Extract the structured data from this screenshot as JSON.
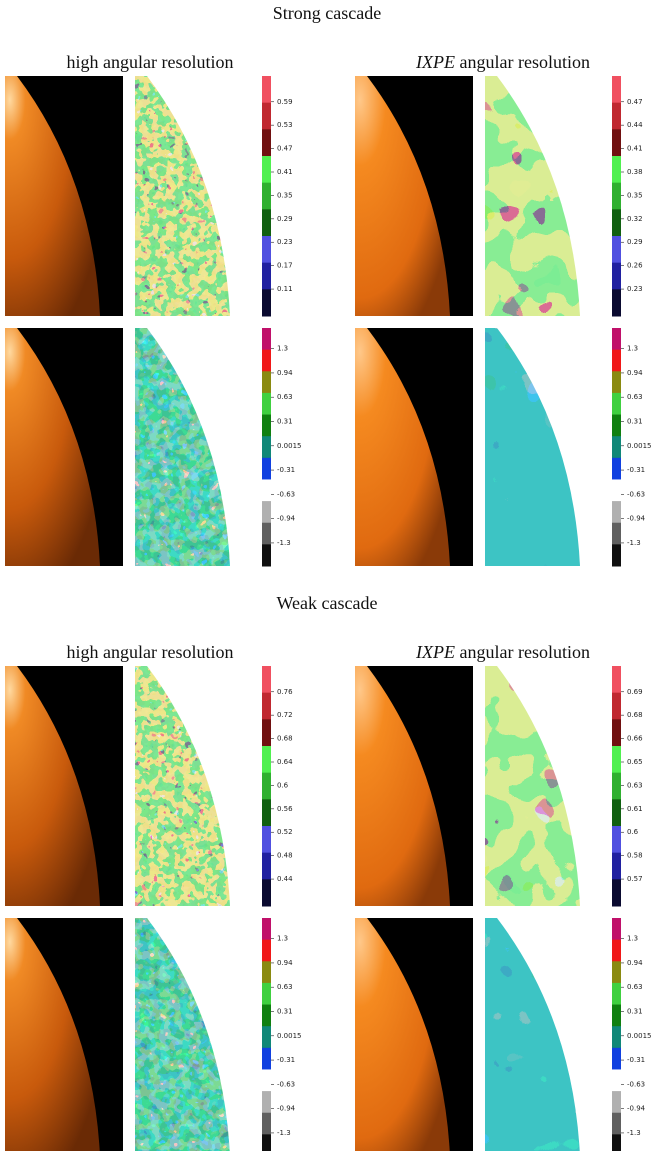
{
  "sections": [
    {
      "title": "Strong cascade",
      "left_header": "high angular resolution",
      "right_header_italic": "IXPE",
      "right_header": "angular resolution",
      "rows": [
        {
          "left_ticks": [
            "0.59",
            "0.53",
            "0.47",
            "0.41",
            "0.35",
            "0.29",
            "0.23",
            "0.17",
            "0.11"
          ],
          "right_ticks": [
            "0.47",
            "0.44",
            "0.41",
            "0.38",
            "0.35",
            "0.32",
            "0.29",
            "0.26",
            "0.23"
          ]
        },
        {
          "left_ticks": [
            "1.3",
            "0.94",
            "0.63",
            "0.31",
            "0.0015",
            "-0.31",
            "-0.63",
            "-0.94",
            "-1.3"
          ],
          "right_ticks": [
            "1.3",
            "0.94",
            "0.63",
            "0.31",
            "0.0015",
            "-0.31",
            "-0.63",
            "-0.94",
            "-1.3"
          ]
        }
      ]
    },
    {
      "title": "Weak cascade",
      "left_header": "high angular resolution",
      "right_header_italic": "IXPE",
      "right_header": "angular resolution",
      "rows": [
        {
          "left_ticks": [
            "0.76",
            "0.72",
            "0.68",
            "0.64",
            "0.6",
            "0.56",
            "0.52",
            "0.48",
            "0.44"
          ],
          "right_ticks": [
            "0.69",
            "0.68",
            "0.66",
            "0.65",
            "0.63",
            "0.61",
            "0.6",
            "0.58",
            "0.57"
          ]
        },
        {
          "left_ticks": [
            "1.3",
            "0.94",
            "0.63",
            "0.31",
            "0.0015",
            "-0.31",
            "-0.63",
            "-0.94",
            "-1.3"
          ],
          "right_ticks": [
            "1.3",
            "0.94",
            "0.63",
            "0.31",
            "0.0015",
            "-0.31",
            "-0.63",
            "-0.94",
            "-1.3"
          ]
        }
      ]
    }
  ]
}
